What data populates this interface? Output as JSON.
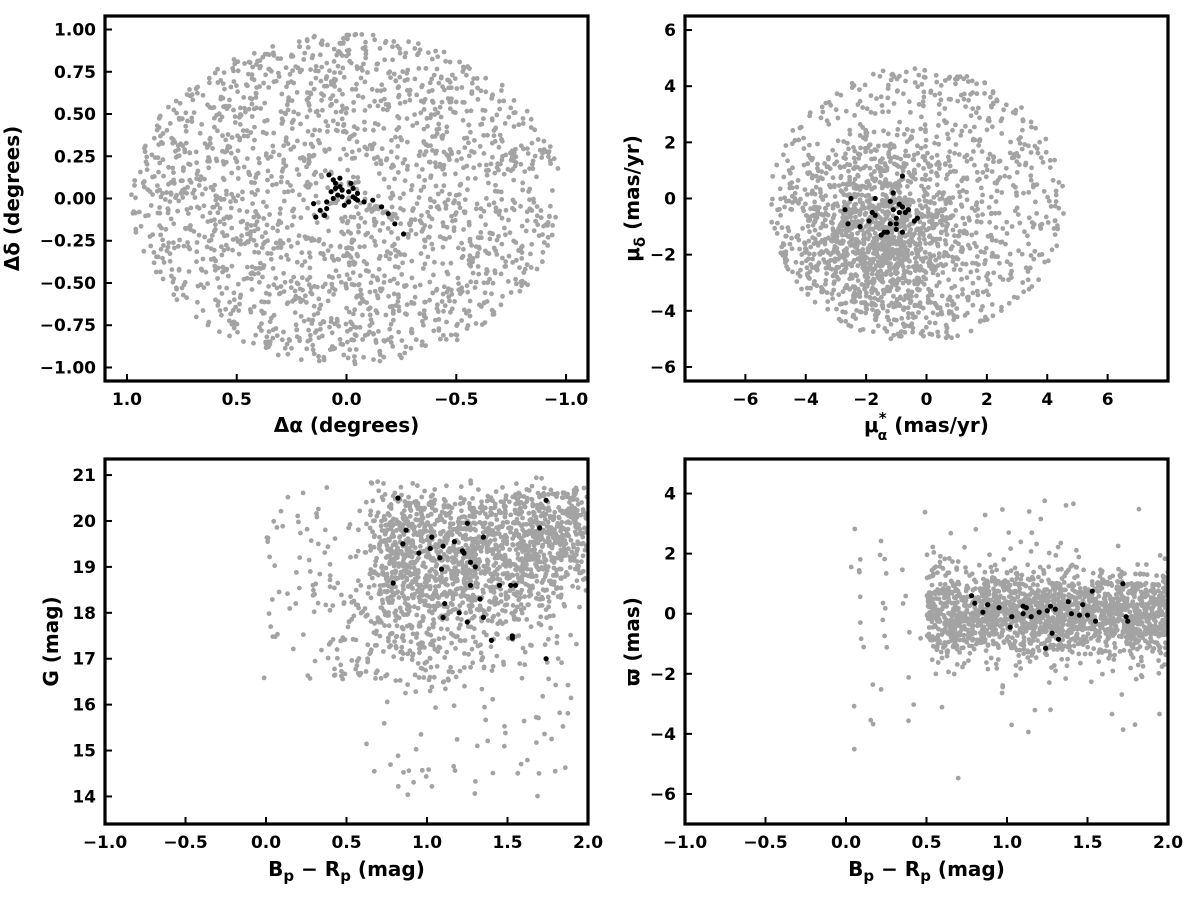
{
  "colors": {
    "field": "#a3a3a3",
    "members": "#000000",
    "frame": "#000000",
    "background": "#ffffff"
  },
  "chart_data": [
    {
      "type": "scatter",
      "xlabel": "Δα (degrees)",
      "ylabel": "Δδ (degrees)",
      "xlim": [
        1.1,
        -1.1
      ],
      "ylim": [
        -1.08,
        1.08
      ],
      "x_reversed": true,
      "xticks": [
        1.0,
        0.5,
        0.0,
        -0.5,
        -1.0
      ],
      "xtick_labels": [
        "1.0",
        "0.5",
        "0.0",
        "−0.5",
        "−1.0"
      ],
      "yticks": [
        1.0,
        0.75,
        0.5,
        0.25,
        0.0,
        -0.25,
        -0.5,
        -0.75,
        -1.0
      ],
      "ytick_labels": [
        "1.00",
        "0.75",
        "0.50",
        "0.25",
        "0.00",
        "−0.25",
        "−0.50",
        "−0.75",
        "−1.00"
      ],
      "series": [
        {
          "role": "field",
          "color": "#a3a3a3",
          "approx_count": 2000,
          "description": "uniformly distributed stars inside a circle of radius 1 degree",
          "distribution": {
            "shape": "disk",
            "cx": 0.0,
            "cy": 0.0,
            "r": 0.98
          }
        },
        {
          "role": "members",
          "color": "#000000",
          "points": [
            [
              0.08,
              0.14
            ],
            [
              0.06,
              0.11
            ],
            [
              0.05,
              0.09
            ],
            [
              0.03,
              0.07
            ],
            [
              0.02,
              0.05
            ],
            [
              0.05,
              0.06
            ],
            [
              0.07,
              0.04
            ],
            [
              0.04,
              0.02
            ],
            [
              0.02,
              0.01
            ],
            [
              -0.01,
              0.04
            ],
            [
              -0.03,
              0.06
            ],
            [
              -0.05,
              0.03
            ],
            [
              -0.03,
              0.01
            ],
            [
              -0.01,
              -0.02
            ],
            [
              0.01,
              -0.04
            ],
            [
              -0.05,
              -0.01
            ],
            [
              -0.08,
              -0.02
            ],
            [
              -0.12,
              -0.01
            ],
            [
              0.09,
              -0.02
            ],
            [
              0.15,
              -0.03
            ],
            [
              0.12,
              -0.07
            ],
            [
              0.09,
              -0.06
            ],
            [
              0.1,
              -0.1
            ],
            [
              0.14,
              -0.11
            ],
            [
              0.06,
              0.0
            ],
            [
              -0.02,
              0.09
            ],
            [
              -0.16,
              -0.05
            ],
            [
              -0.19,
              -0.09
            ],
            [
              -0.22,
              -0.15
            ],
            [
              -0.26,
              -0.21
            ],
            [
              -0.04,
              0.0
            ],
            [
              0.03,
              0.12
            ]
          ]
        }
      ]
    },
    {
      "type": "scatter",
      "xlabel_main": "μ",
      "xlabel_sup": "*",
      "xlabel_sub": "α",
      "xlabel_unit": " (mas/yr)",
      "ylabel_main": "μ",
      "ylabel_sub": "δ",
      "ylabel_unit": " (mas/yr)",
      "xlim": [
        -8,
        8
      ],
      "ylim": [
        -6.5,
        6.5
      ],
      "xticks": [
        -6,
        -4,
        -2,
        0,
        2,
        4,
        6
      ],
      "xtick_labels": [
        "−6",
        "−4",
        "−2",
        "0",
        "2",
        "4",
        "6"
      ],
      "yticks": [
        6,
        4,
        2,
        0,
        -2,
        -4,
        -6
      ],
      "ytick_labels": [
        "6",
        "4",
        "2",
        "0",
        "−2",
        "−4",
        "−6"
      ],
      "series": [
        {
          "role": "field",
          "color": "#a3a3a3",
          "approx_count": 2000,
          "description": "stars within a disk of radius ~5 mas/yr, concentrated near (-1.5, -1.5)",
          "distribution": {
            "shape": "disk-cluster",
            "cx": -0.3,
            "cy": -0.2,
            "r": 4.9,
            "core_x": -1.5,
            "core_y": -1.4,
            "core_sx": 1.4,
            "core_sy": 1.6
          }
        },
        {
          "role": "members",
          "color": "#000000",
          "points": [
            [
              -2.7,
              -0.4
            ],
            [
              -2.6,
              -0.9
            ],
            [
              -2.5,
              0.0
            ],
            [
              -2.2,
              -1.0
            ],
            [
              -1.9,
              -0.8
            ],
            [
              -1.8,
              -0.5
            ],
            [
              -1.7,
              -0.6
            ],
            [
              -1.7,
              0.0
            ],
            [
              -1.5,
              -1.3
            ],
            [
              -1.4,
              -1.2
            ],
            [
              -1.3,
              -1.2
            ],
            [
              -1.2,
              -0.1
            ],
            [
              -1.1,
              0.2
            ],
            [
              -1.1,
              -0.4
            ],
            [
              -1.0,
              -0.7
            ],
            [
              -1.0,
              -0.9
            ],
            [
              -1.0,
              -1.1
            ],
            [
              -0.9,
              -0.5
            ],
            [
              -0.8,
              -0.3
            ],
            [
              -0.8,
              -1.2
            ],
            [
              -0.7,
              -0.5
            ],
            [
              -0.6,
              -0.4
            ],
            [
              -0.8,
              0.8
            ],
            [
              -0.4,
              -0.8
            ],
            [
              -0.3,
              -0.7
            ],
            [
              -1.2,
              -0.9
            ],
            [
              -0.9,
              -0.2
            ]
          ]
        }
      ]
    },
    {
      "type": "scatter",
      "xlabel_main": "B",
      "xlabel_sub1": "p",
      "xlabel_mid": " − R",
      "xlabel_sub2": "p",
      "xlabel_unit": " (mag)",
      "ylabel": "G (mag)",
      "xlim": [
        -1.0,
        2.0
      ],
      "ylim": [
        13.4,
        21.35
      ],
      "y_reversed": false,
      "xticks": [
        -1.0,
        -0.5,
        0.0,
        0.5,
        1.0,
        1.5,
        2.0
      ],
      "xtick_labels": [
        "−1.0",
        "−0.5",
        "0.0",
        "0.5",
        "1.0",
        "1.5",
        "2.0"
      ],
      "yticks": [
        21,
        20,
        19,
        18,
        17,
        16,
        15,
        14
      ],
      "ytick_labels": [
        "21",
        "20",
        "19",
        "18",
        "17",
        "16",
        "15",
        "14"
      ],
      "series": [
        {
          "role": "field",
          "color": "#a3a3a3",
          "approx_count": 2000,
          "description": "color-magnitude diagram field stars, densest at B-R 0.8-1.6, G 18-20.8",
          "distribution": {
            "shape": "cmd"
          }
        },
        {
          "role": "members",
          "color": "#000000",
          "points": [
            [
              0.82,
              20.5
            ],
            [
              0.87,
              19.8
            ],
            [
              0.85,
              19.5
            ],
            [
              0.95,
              19.3
            ],
            [
              1.02,
              19.4
            ],
            [
              1.03,
              19.65
            ],
            [
              1.08,
              19.2
            ],
            [
              1.09,
              18.95
            ],
            [
              1.1,
              19.45
            ],
            [
              1.17,
              19.55
            ],
            [
              1.22,
              19.35
            ],
            [
              1.23,
              19.3
            ],
            [
              1.25,
              19.95
            ],
            [
              1.27,
              19.1
            ],
            [
              1.3,
              19.0
            ],
            [
              1.35,
              19.65
            ],
            [
              1.33,
              18.3
            ],
            [
              1.35,
              17.9
            ],
            [
              1.27,
              18.6
            ],
            [
              1.2,
              18.0
            ],
            [
              1.11,
              18.2
            ],
            [
              1.1,
              17.9
            ],
            [
              1.25,
              17.8
            ],
            [
              1.4,
              17.4
            ],
            [
              1.45,
              18.6
            ],
            [
              1.52,
              18.6
            ],
            [
              1.53,
              17.45
            ],
            [
              1.53,
              17.5
            ],
            [
              1.7,
              19.85
            ],
            [
              1.74,
              20.45
            ],
            [
              1.74,
              17.0
            ],
            [
              0.79,
              18.65
            ],
            [
              1.55,
              18.6
            ]
          ]
        }
      ]
    },
    {
      "type": "scatter",
      "xlabel_main": "B",
      "xlabel_sub1": "p",
      "xlabel_mid": " − R",
      "xlabel_sub2": "p",
      "xlabel_unit": " (mag)",
      "ylabel": "ϖ (mas)",
      "xlim": [
        -1.0,
        2.0
      ],
      "ylim": [
        -7.0,
        5.15
      ],
      "xticks": [
        -1.0,
        -0.5,
        0.0,
        0.5,
        1.0,
        1.5,
        2.0
      ],
      "xtick_labels": [
        "−1.0",
        "−0.5",
        "0.0",
        "0.5",
        "1.0",
        "1.5",
        "2.0"
      ],
      "yticks": [
        4,
        2,
        0,
        -2,
        -4,
        -6
      ],
      "ytick_labels": [
        "4",
        "2",
        "0",
        "−2",
        "−4",
        "−6"
      ],
      "series": [
        {
          "role": "field",
          "color": "#a3a3a3",
          "approx_count": 2000,
          "description": "parallax vs color, dense band around 0 mas between B-R 0.5 and 2.0",
          "distribution": {
            "shape": "band"
          }
        },
        {
          "role": "members",
          "color": "#000000",
          "points": [
            [
              0.78,
              0.6
            ],
            [
              0.8,
              0.35
            ],
            [
              0.85,
              0.05
            ],
            [
              0.88,
              0.3
            ],
            [
              0.95,
              0.2
            ],
            [
              1.02,
              -0.45
            ],
            [
              1.03,
              -0.1
            ],
            [
              1.1,
              0.0
            ],
            [
              1.1,
              0.25
            ],
            [
              1.12,
              0.2
            ],
            [
              1.15,
              -0.1
            ],
            [
              1.2,
              0.05
            ],
            [
              1.25,
              0.1
            ],
            [
              1.27,
              0.25
            ],
            [
              1.3,
              0.15
            ],
            [
              1.24,
              -1.15
            ],
            [
              1.28,
              -0.65
            ],
            [
              1.32,
              -0.85
            ],
            [
              1.38,
              0.4
            ],
            [
              1.4,
              0.0
            ],
            [
              1.47,
              0.3
            ],
            [
              1.5,
              -0.05
            ],
            [
              1.53,
              0.75
            ],
            [
              1.55,
              -0.25
            ],
            [
              1.72,
              1.0
            ],
            [
              1.74,
              -0.1
            ],
            [
              1.75,
              -0.25
            ],
            [
              1.45,
              -0.05
            ]
          ]
        }
      ]
    }
  ]
}
